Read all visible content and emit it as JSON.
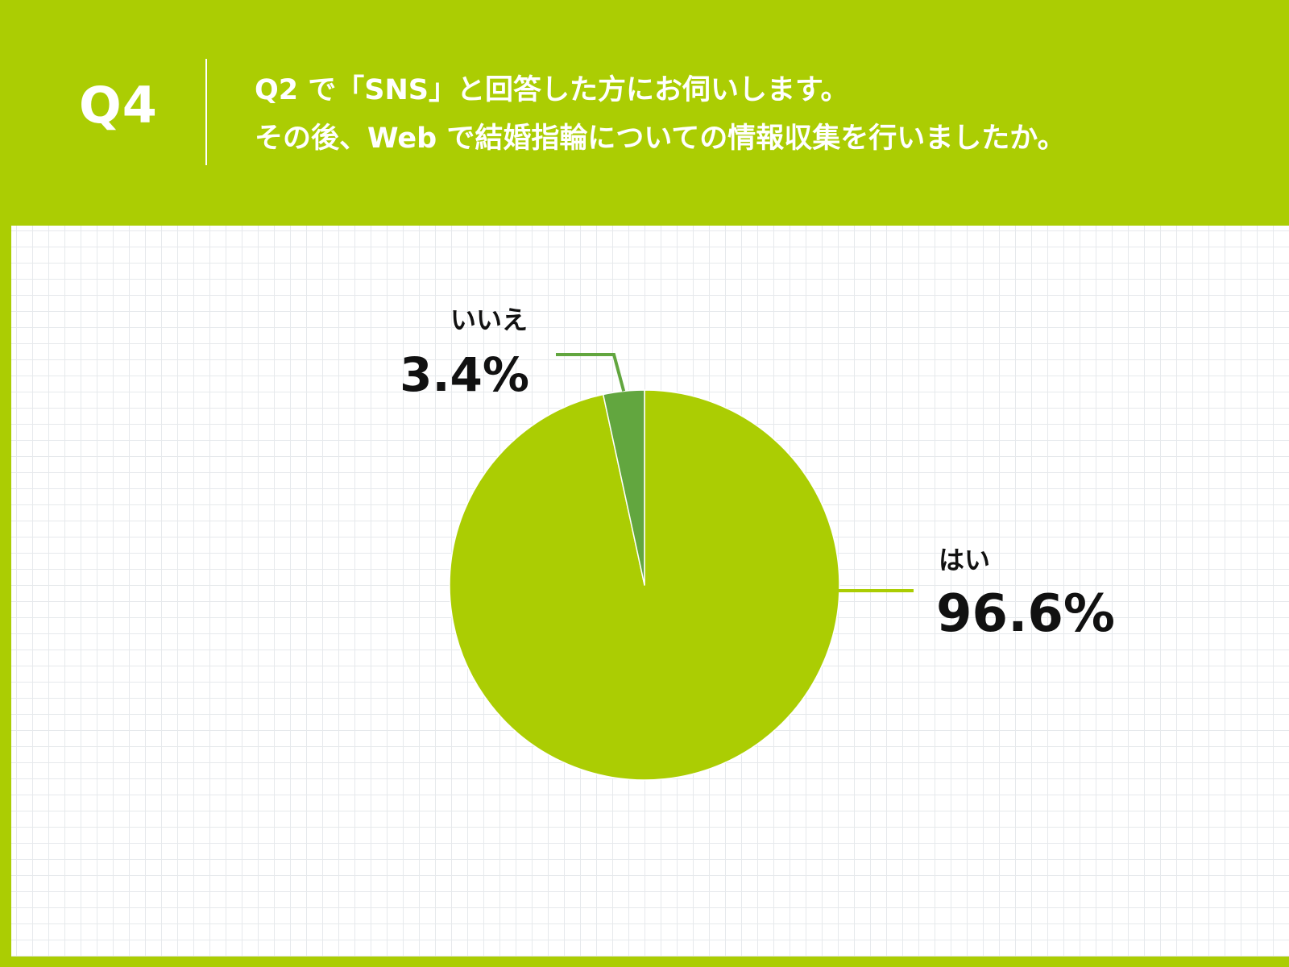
{
  "header": {
    "question_number": "Q4",
    "question_lines": [
      "Q2 で「SNS」と回答した方にお伺いします。",
      "その後、Web で結婚指輪についての情報収集を行いましたか。"
    ]
  },
  "colors": {
    "background": "#abcd03",
    "yes": "#abcd03",
    "no": "#62a63f",
    "text_dark": "#111111",
    "text_light": "#ffffff"
  },
  "chart_data": {
    "type": "pie",
    "categories": [
      "はい",
      "いいえ"
    ],
    "values": [
      96.6,
      3.4
    ],
    "value_labels": [
      "96.6%",
      "3.4%"
    ],
    "start": "12 o'clock",
    "direction": "clockwise",
    "legend": "none"
  }
}
